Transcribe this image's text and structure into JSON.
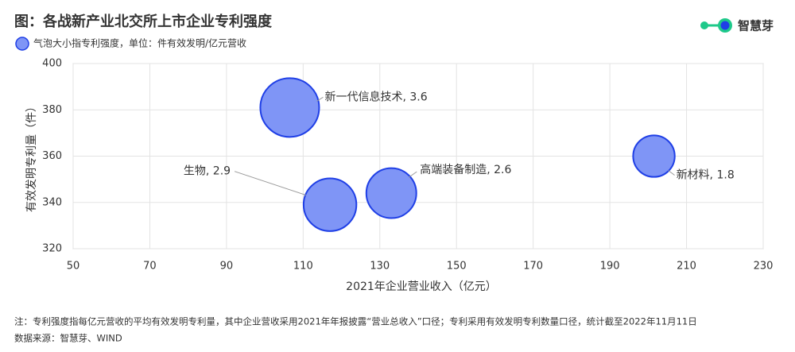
{
  "chart_data": {
    "type": "bubble",
    "title": "图：各战新产业北交所上市企业专利强度",
    "legend_text": "气泡大小指专利强度，单位：件有效发明/亿元营收",
    "logo_text": "智慧芽",
    "x_label": "2021年企业营业收入（亿元）",
    "y_label": "有效发明专利量（件）",
    "labels": [
      "新一代信息技术, 3.6",
      "生物, 2.9",
      "高端装备制造, 2.6",
      "新材料, 1.8"
    ],
    "x": [
      106.5,
      117,
      133,
      201.5
    ],
    "y": [
      381,
      339,
      344,
      360
    ],
    "sizes": [
      3.6,
      2.9,
      2.6,
      1.8
    ],
    "color": "#7f95f6",
    "edge_color": "#1f3fe6",
    "xlim": [
      50,
      230
    ],
    "ylim": [
      320,
      400
    ],
    "xticks": [
      50,
      70,
      90,
      110,
      130,
      150,
      170,
      190,
      210,
      230
    ],
    "yticks": [
      320,
      340,
      360,
      380,
      400
    ],
    "grid": true,
    "notes": [
      "注：专利强度指每亿元营收的平均有效发明专利量，其中企业营收采用2021年年报披露“营业总收入”口径；专利采用有效发明专利数量口径，统计截至2022年11月11日",
      "数据来源：智慧芽、WIND"
    ]
  }
}
